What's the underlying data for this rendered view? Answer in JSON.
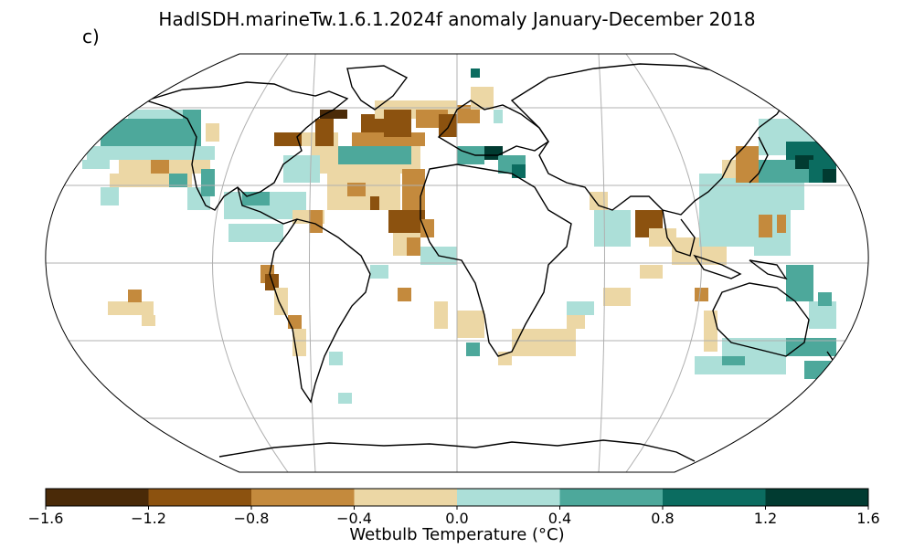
{
  "title": "HadISDH.marineTw.1.6.1.2024f anomaly January-December 2018",
  "panel_label": "c)",
  "colorbar": {
    "label": "Wetbulb Temperature (°C)",
    "ticks": [
      "−1.6",
      "−1.2",
      "−0.8",
      "−0.4",
      "0.0",
      "0.4",
      "0.8",
      "1.2",
      "1.6"
    ],
    "colors": [
      "#4a2a08",
      "#8c520f",
      "#c48a3d",
      "#ecd7a5",
      "#acdfd8",
      "#4da89b",
      "#0b6c60",
      "#013b31"
    ]
  }
}
